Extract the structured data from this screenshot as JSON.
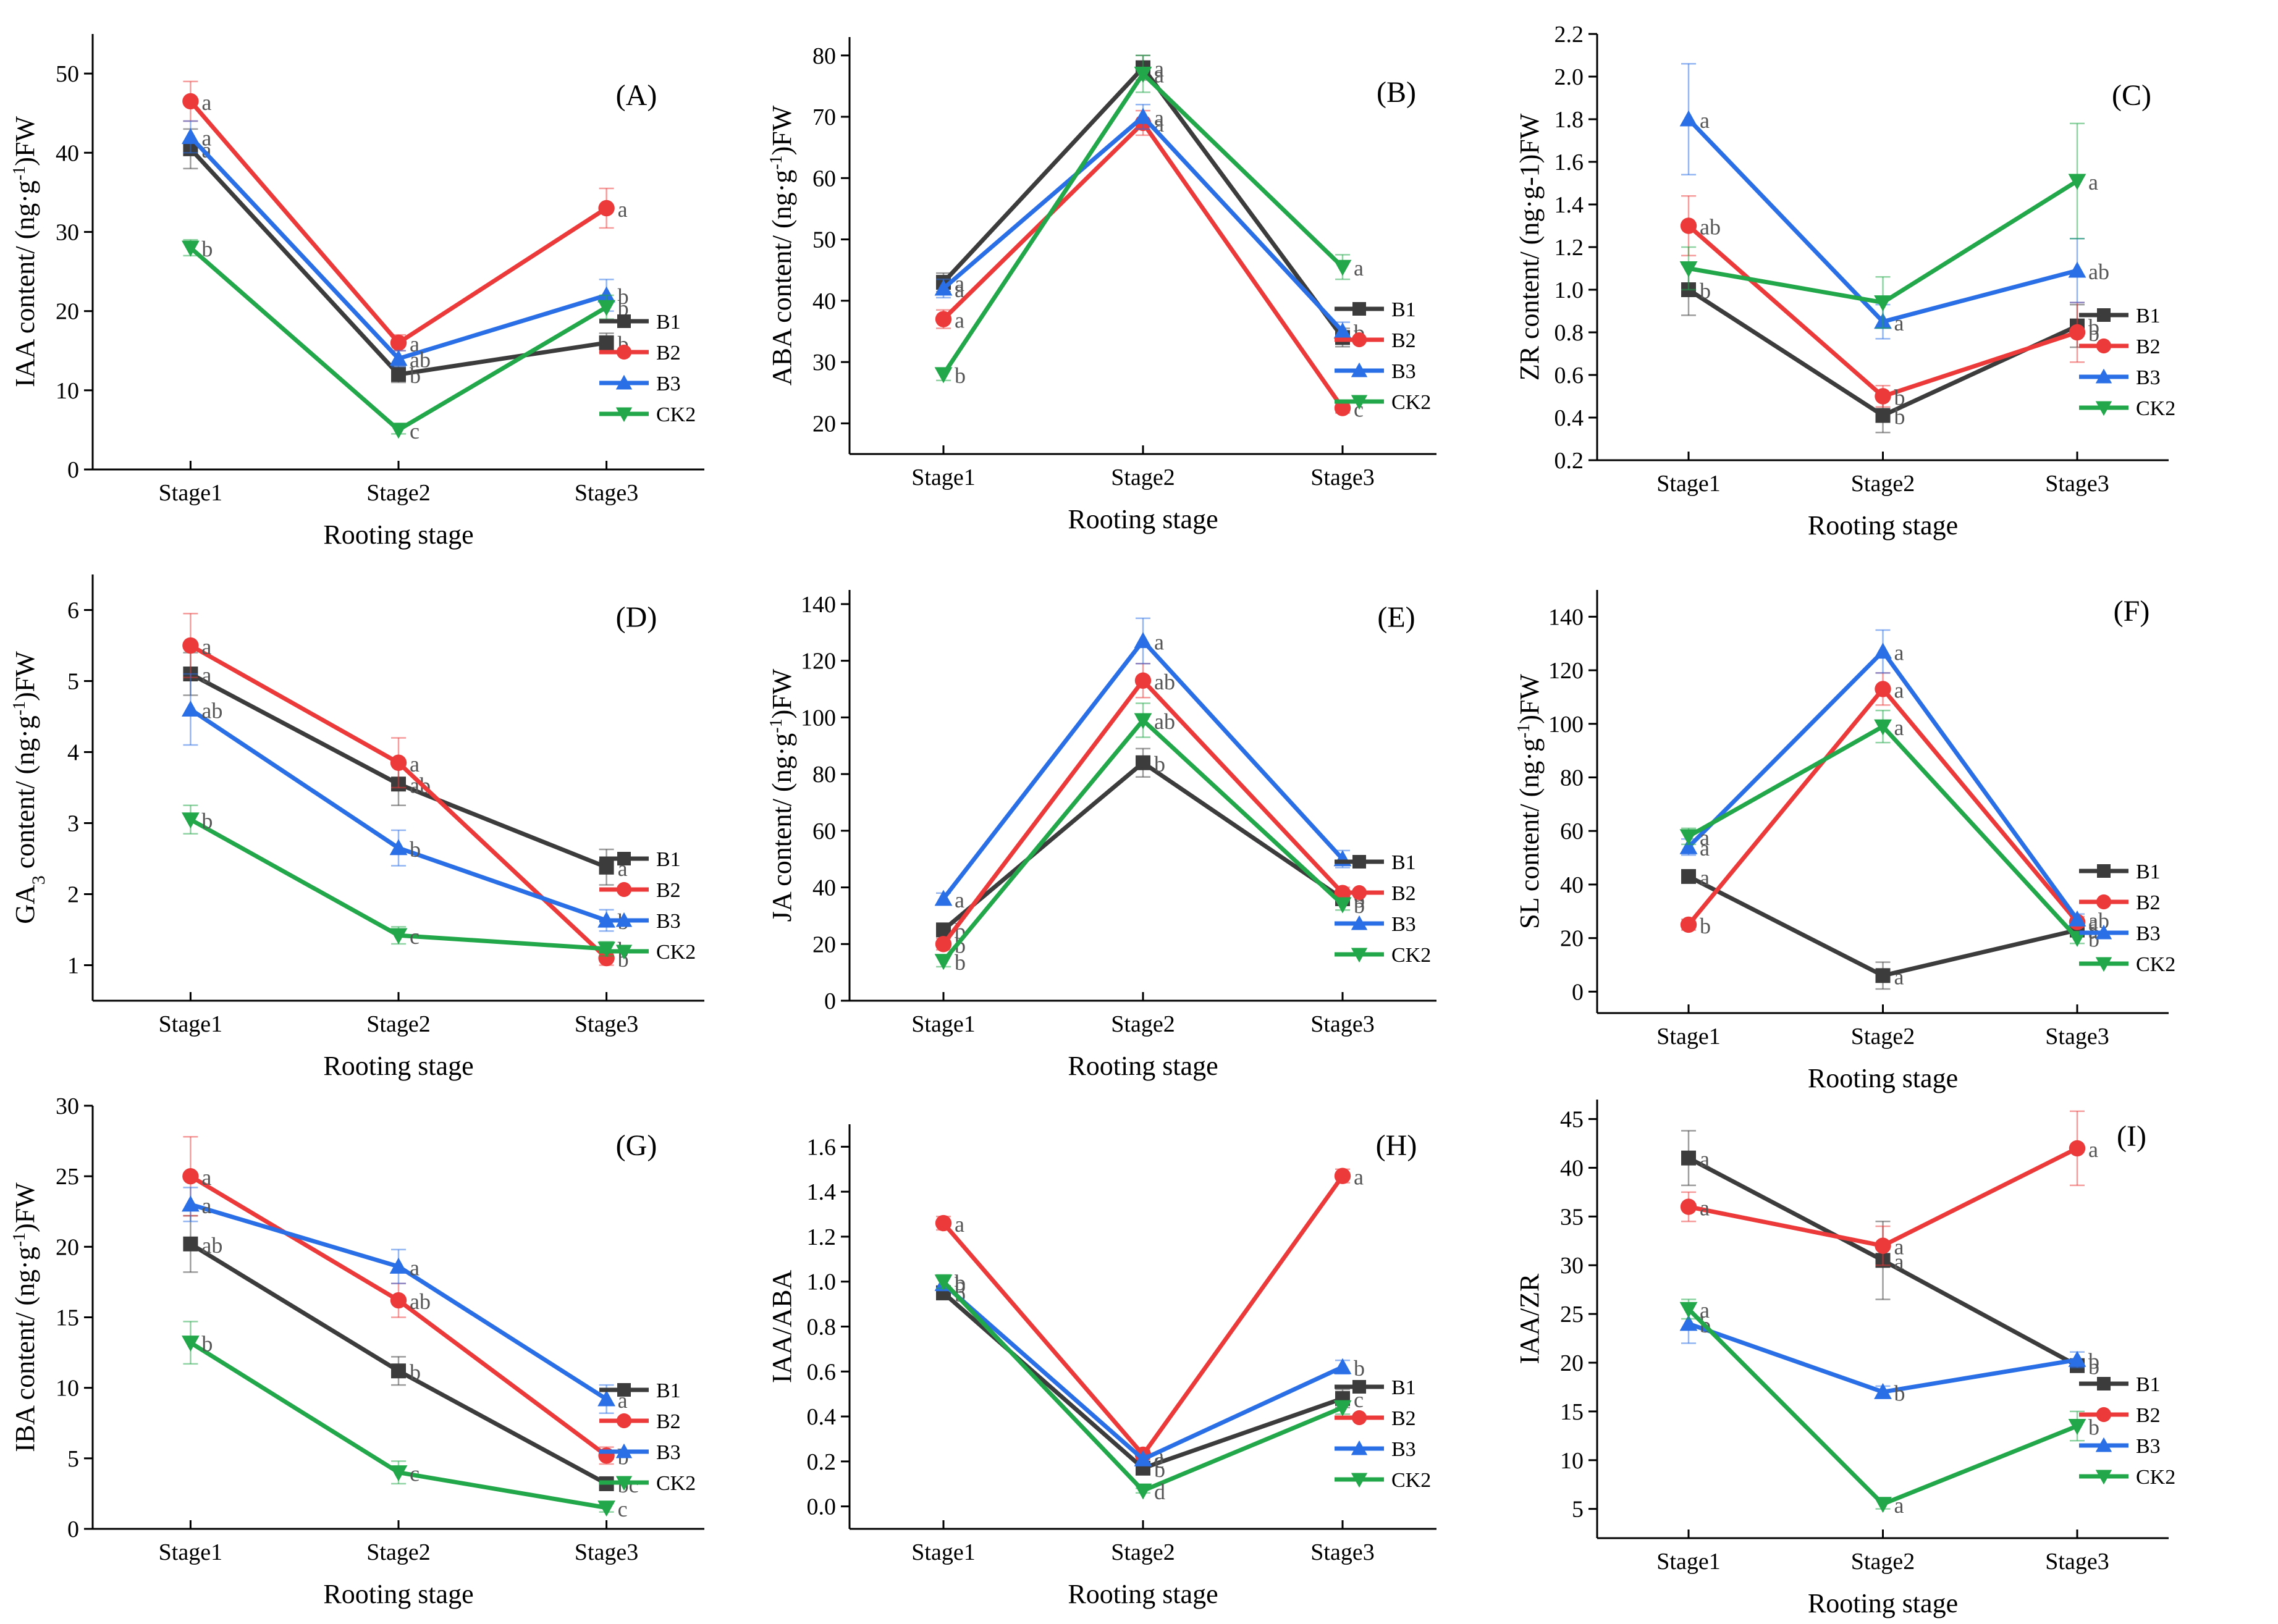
{
  "colors": {
    "B1": "#3c3c3c",
    "B2": "#ec3a3a",
    "B3": "#2a6fe6",
    "CK2": "#22a84a"
  },
  "chart_data": [
    {
      "type": "line",
      "panel": "(A)",
      "xlabel": "Rooting stage",
      "ylabel_html": "IAA content/ (ng·g<tspan baseline-shift='super' font-size='28'>-1</tspan>)FW",
      "categories": [
        "Stage1",
        "Stage2",
        "Stage3"
      ],
      "ylim": [
        0,
        55
      ],
      "yticks": [
        0,
        10,
        20,
        30,
        40,
        50
      ],
      "series": [
        {
          "name": "B1",
          "values": [
            40.5,
            12,
            16
          ],
          "errors": [
            2.5,
            1,
            1.2
          ],
          "labels": [
            "a",
            "b",
            "b"
          ]
        },
        {
          "name": "B2",
          "values": [
            46.5,
            16,
            33
          ],
          "errors": [
            2.5,
            1,
            2.5
          ],
          "labels": [
            "a",
            "a",
            "a"
          ]
        },
        {
          "name": "B3",
          "values": [
            42,
            14,
            22
          ],
          "errors": [
            2,
            1,
            2
          ],
          "labels": [
            "a",
            "ab",
            "b"
          ]
        },
        {
          "name": "CK2",
          "values": [
            28,
            5,
            20.5
          ],
          "errors": [
            1,
            0.5,
            1.5
          ],
          "labels": [
            "b",
            "c",
            "b"
          ]
        }
      ],
      "legend": [
        "B1",
        "B2",
        "B3",
        "CK2"
      ]
    },
    {
      "type": "line",
      "panel": "(B)",
      "xlabel": "Rooting stage",
      "ylabel_html": "ABA content/ (ng·g<tspan baseline-shift='super' font-size='28'>-1</tspan>)FW",
      "categories": [
        "Stage1",
        "Stage2",
        "Stage3"
      ],
      "ylim": [
        15,
        83
      ],
      "yticks": [
        20,
        30,
        40,
        50,
        60,
        70,
        80
      ],
      "series": [
        {
          "name": "B1",
          "values": [
            43,
            78,
            34
          ],
          "errors": [
            1.5,
            2,
            1.5
          ],
          "labels": [
            "a",
            "a",
            "b"
          ]
        },
        {
          "name": "B2",
          "values": [
            37,
            69,
            22.5
          ],
          "errors": [
            1.5,
            2,
            0.8
          ],
          "labels": [
            "a",
            "a",
            "c"
          ]
        },
        {
          "name": "B3",
          "values": [
            42,
            70,
            35
          ],
          "errors": [
            1.5,
            2,
            1.5
          ],
          "labels": [
            "a",
            "a",
            "b"
          ]
        },
        {
          "name": "CK2",
          "values": [
            28,
            77,
            45.5
          ],
          "errors": [
            1,
            3,
            2
          ],
          "labels": [
            "b",
            "a",
            "a"
          ]
        }
      ],
      "legend": [
        "B1",
        "B2",
        "B3",
        "CK2"
      ]
    },
    {
      "type": "line",
      "panel": "(C)",
      "xlabel": "Rooting stage",
      "ylabel_html": "ZR content/ (ng·g-1)FW",
      "categories": [
        "Stage1",
        "Stage2",
        "Stage3"
      ],
      "ylim": [
        0.2,
        2.2
      ],
      "yticks": [
        0.2,
        0.4,
        0.6,
        0.8,
        1.0,
        1.2,
        1.4,
        1.6,
        1.8,
        2.0,
        2.2
      ],
      "series": [
        {
          "name": "B1",
          "values": [
            1.0,
            0.41,
            0.83
          ],
          "errors": [
            0.12,
            0.08,
            0.1
          ],
          "labels": [
            "b",
            "b",
            "b"
          ]
        },
        {
          "name": "B2",
          "values": [
            1.3,
            0.5,
            0.8
          ],
          "errors": [
            0.14,
            0.05,
            0.14
          ],
          "labels": [
            "ab",
            "b",
            "b"
          ]
        },
        {
          "name": "B3",
          "values": [
            1.8,
            0.85,
            1.09
          ],
          "errors": [
            0.26,
            0.08,
            0.15
          ],
          "labels": [
            "a",
            "a",
            "ab"
          ]
        },
        {
          "name": "CK2",
          "values": [
            1.1,
            0.94,
            1.51
          ],
          "errors": [
            0.1,
            0.12,
            0.27
          ],
          "labels": [
            "",
            "",
            "a"
          ]
        }
      ],
      "legend": [
        "B1",
        "B2",
        "B3",
        "CK2"
      ]
    },
    {
      "type": "line",
      "panel": "(D)",
      "xlabel": "Rooting stage",
      "ylabel_html": "GA<tspan baseline-shift='sub' font-size='30'>3</tspan> content/ (ng·g<tspan baseline-shift='super' font-size='28'>-1</tspan>)FW",
      "categories": [
        "Stage1",
        "Stage2",
        "Stage3"
      ],
      "ylim": [
        0.5,
        6.5
      ],
      "yticks": [
        1,
        2,
        3,
        4,
        5,
        6
      ],
      "series": [
        {
          "name": "B1",
          "values": [
            5.1,
            3.55,
            2.38
          ],
          "errors": [
            0.3,
            0.3,
            0.25
          ],
          "labels": [
            "a",
            "ab",
            "a"
          ]
        },
        {
          "name": "B2",
          "values": [
            5.5,
            3.85,
            1.1
          ],
          "errors": [
            0.45,
            0.35,
            0.1
          ],
          "labels": [
            "a",
            "a",
            "b"
          ]
        },
        {
          "name": "B3",
          "values": [
            4.6,
            2.65,
            1.63
          ],
          "errors": [
            0.5,
            0.25,
            0.15
          ],
          "labels": [
            "ab",
            "b",
            "b"
          ]
        },
        {
          "name": "CK2",
          "values": [
            3.05,
            1.42,
            1.23
          ],
          "errors": [
            0.2,
            0.12,
            0.1
          ],
          "labels": [
            "b",
            "c",
            "b"
          ]
        }
      ],
      "legend": [
        "B1",
        "B2",
        "B3",
        "CK2"
      ]
    },
    {
      "type": "line",
      "panel": "(E)",
      "xlabel": "Rooting stage",
      "ylabel_html": "JA content/ (ng·g<tspan baseline-shift='super' font-size='28'>-1</tspan>)FW",
      "categories": [
        "Stage1",
        "Stage2",
        "Stage3"
      ],
      "ylim": [
        0,
        145
      ],
      "yticks": [
        0,
        20,
        40,
        60,
        80,
        100,
        120,
        140
      ],
      "series": [
        {
          "name": "B1",
          "values": [
            25,
            84,
            36
          ],
          "errors": [
            2,
            5,
            2
          ],
          "labels": [
            "b",
            "b",
            "b"
          ]
        },
        {
          "name": "B2",
          "values": [
            20,
            113,
            38
          ],
          "errors": [
            2,
            6,
            2
          ],
          "labels": [
            "b",
            "ab",
            "a"
          ]
        },
        {
          "name": "B3",
          "values": [
            36,
            127,
            50
          ],
          "errors": [
            2,
            8,
            3
          ],
          "labels": [
            "a",
            "a",
            "a"
          ]
        },
        {
          "name": "CK2",
          "values": [
            14,
            99,
            34
          ],
          "errors": [
            2,
            6,
            2
          ],
          "labels": [
            "b",
            "ab",
            "b"
          ]
        }
      ],
      "legend": [
        "B1",
        "B2",
        "B3",
        "CK2"
      ]
    },
    {
      "type": "line",
      "panel": "(F)",
      "xlabel": "Rooting stage",
      "ylabel_html": "SL content/ (ng·g<tspan baseline-shift='super' font-size='28'>-1</tspan>)FW",
      "categories": [
        "Stage1",
        "Stage2",
        "Stage3"
      ],
      "ylim": [
        -8,
        150
      ],
      "yticks": [
        0,
        20,
        40,
        60,
        80,
        100,
        120,
        140
      ],
      "series": [
        {
          "name": "B1",
          "values": [
            43,
            6,
            23
          ],
          "errors": [
            2,
            5,
            2
          ],
          "labels": [
            "a",
            "a",
            "a"
          ]
        },
        {
          "name": "B2",
          "values": [
            25,
            113,
            26
          ],
          "errors": [
            2,
            6,
            2
          ],
          "labels": [
            "b",
            "a",
            "a"
          ]
        },
        {
          "name": "B3",
          "values": [
            54,
            127,
            27
          ],
          "errors": [
            3,
            8,
            2
          ],
          "labels": [
            "a",
            "a",
            "ab"
          ]
        },
        {
          "name": "CK2",
          "values": [
            58,
            99,
            20
          ],
          "errors": [
            3,
            6,
            2
          ],
          "labels": [
            "a",
            "a",
            "b"
          ]
        }
      ],
      "legend": [
        "B1",
        "B2",
        "B3",
        "CK2"
      ]
    },
    {
      "type": "line",
      "panel": "(G)",
      "xlabel": "Rooting stage",
      "ylabel_html": "IBA content/ (ng·g<tspan baseline-shift='super' font-size='28'>-1</tspan>)FW",
      "categories": [
        "Stage1",
        "Stage2",
        "Stage3"
      ],
      "ylim": [
        0,
        30
      ],
      "yticks": [
        0,
        5,
        10,
        15,
        20,
        25,
        30
      ],
      "series": [
        {
          "name": "B1",
          "values": [
            20.2,
            11.2,
            3.2
          ],
          "errors": [
            2,
            1,
            0.3
          ],
          "labels": [
            "ab",
            "b",
            "bc"
          ]
        },
        {
          "name": "B2",
          "values": [
            25,
            16.2,
            5.2
          ],
          "errors": [
            2.8,
            1.2,
            0.6
          ],
          "labels": [
            "a",
            "ab",
            "b"
          ]
        },
        {
          "name": "B3",
          "values": [
            23,
            18.6,
            9.2
          ],
          "errors": [
            1.2,
            1.2,
            1
          ],
          "labels": [
            "a",
            "a",
            "a"
          ]
        },
        {
          "name": "CK2",
          "values": [
            13.2,
            4,
            1.5
          ],
          "errors": [
            1.5,
            0.8,
            0.3
          ],
          "labels": [
            "b",
            "c",
            "c"
          ]
        }
      ],
      "legend": [
        "B1",
        "B2",
        "B3",
        "CK2"
      ]
    },
    {
      "type": "line",
      "panel": "(H)",
      "xlabel": "Rooting stage",
      "ylabel_html": "IAA/ABA",
      "categories": [
        "Stage1",
        "Stage2",
        "Stage3"
      ],
      "ylim": [
        -0.1,
        1.7
      ],
      "yticks": [
        0.0,
        0.2,
        0.4,
        0.6,
        0.8,
        1.0,
        1.2,
        1.4,
        1.6
      ],
      "series": [
        {
          "name": "B1",
          "values": [
            0.95,
            0.17,
            0.48
          ],
          "errors": [
            0.03,
            0.02,
            0.04
          ],
          "labels": [
            "b",
            "b",
            "c"
          ]
        },
        {
          "name": "B2",
          "values": [
            1.26,
            0.23,
            1.47
          ],
          "errors": [
            0.03,
            0.02,
            0.03
          ],
          "labels": [
            "a",
            "a",
            "a"
          ]
        },
        {
          "name": "B3",
          "values": [
            0.99,
            0.21,
            0.62
          ],
          "errors": [
            0.03,
            0.02,
            0.03
          ],
          "labels": [
            "b",
            "c",
            "b"
          ]
        },
        {
          "name": "CK2",
          "values": [
            1.0,
            0.07,
            0.44
          ],
          "errors": [
            0.03,
            0.01,
            0.03
          ],
          "labels": [
            "b",
            "d",
            ""
          ]
        }
      ],
      "legend": [
        "B1",
        "B2",
        "B3",
        "CK2"
      ]
    },
    {
      "type": "line",
      "panel": "(I)",
      "xlabel": "Rooting stage",
      "ylabel_html": "IAA/ZR",
      "categories": [
        "Stage1",
        "Stage2",
        "Stage3"
      ],
      "ylim": [
        2,
        47
      ],
      "yticks": [
        5,
        10,
        15,
        20,
        25,
        30,
        35,
        40,
        45
      ],
      "series": [
        {
          "name": "B1",
          "values": [
            41,
            30.5,
            19.7
          ],
          "errors": [
            2.8,
            4,
            0.5
          ],
          "labels": [
            "a",
            "a",
            "b"
          ]
        },
        {
          "name": "B2",
          "values": [
            36,
            32,
            42
          ],
          "errors": [
            1.5,
            2,
            3.8
          ],
          "labels": [
            "a",
            "a",
            "a"
          ]
        },
        {
          "name": "B3",
          "values": [
            24,
            17,
            20.3
          ],
          "errors": [
            2,
            0.6,
            0.8
          ],
          "labels": [
            "b",
            "b",
            "b"
          ]
        },
        {
          "name": "CK2",
          "values": [
            25.5,
            5.5,
            13.5
          ],
          "errors": [
            1,
            0.5,
            1.5
          ],
          "labels": [
            "a",
            "a",
            "b"
          ]
        }
      ],
      "legend": [
        "B1",
        "B2",
        "B3",
        "CK2"
      ]
    }
  ]
}
